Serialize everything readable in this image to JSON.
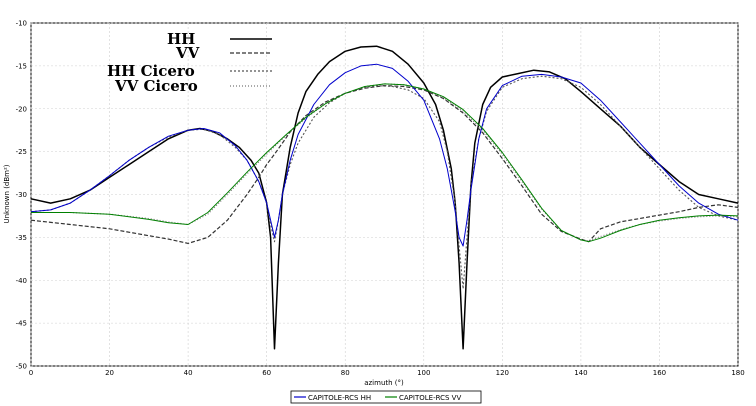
{
  "chart_data": {
    "type": "line",
    "xlabel": "azimuth (°)",
    "ylabel": "Unknown (dBm²)",
    "xlim": [
      0,
      180
    ],
    "ylim": [
      -50,
      -10
    ],
    "xticks": [
      0,
      20,
      40,
      60,
      80,
      100,
      120,
      140,
      160,
      180
    ],
    "yticks": [
      -10,
      -15,
      -20,
      -25,
      -30,
      -35,
      -40,
      -45,
      -50
    ],
    "grid": true,
    "legend_top": [
      "HH",
      "VV",
      "HH Cicero",
      "VV Cicero"
    ],
    "legend_bottom": [
      "CAPITOLE-RCS HH",
      "CAPITOLE-RCS VV"
    ],
    "series": [
      {
        "name": "HH",
        "color": "#000000",
        "x": [
          0,
          5,
          10,
          15,
          20,
          25,
          30,
          35,
          40,
          43,
          46,
          50,
          53,
          56,
          58,
          60,
          61,
          62,
          63,
          64,
          66,
          68,
          70,
          73,
          76,
          80,
          84,
          88,
          92,
          96,
          100,
          103,
          105,
          107,
          108,
          109,
          110,
          111,
          112,
          113,
          115,
          117,
          120,
          124,
          128,
          132,
          136,
          140,
          145,
          150,
          155,
          160,
          165,
          170,
          175,
          180
        ],
        "y": [
          -30.5,
          -31,
          -30.5,
          -29.5,
          -28,
          -26.5,
          -25,
          -23.5,
          -22.5,
          -22.3,
          -22.6,
          -23.5,
          -24.5,
          -26,
          -27.5,
          -31,
          -35,
          -48,
          -38,
          -30,
          -24.5,
          -20.5,
          -18,
          -16,
          -14.5,
          -13.3,
          -12.8,
          -12.7,
          -13.3,
          -14.8,
          -17,
          -19.5,
          -22.5,
          -27,
          -31,
          -38,
          -48,
          -38,
          -29,
          -24,
          -19.5,
          -17.5,
          -16.3,
          -15.9,
          -15.5,
          -15.7,
          -16.5,
          -18,
          -20,
          -22,
          -24.5,
          -26.5,
          -28.5,
          -30,
          -30.5,
          -31
        ]
      },
      {
        "name": "VV",
        "color": "#333333",
        "x": [
          0,
          10,
          20,
          30,
          35,
          40,
          45,
          50,
          55,
          58,
          60,
          62,
          64,
          66,
          70,
          75,
          80,
          85,
          90,
          95,
          100,
          105,
          110,
          115,
          120,
          125,
          130,
          135,
          140,
          142,
          145,
          150,
          155,
          160,
          165,
          170,
          175,
          180
        ],
        "y": [
          -33,
          -33.5,
          -34,
          -34.8,
          -35.2,
          -35.7,
          -35,
          -33,
          -30,
          -28,
          -26.5,
          -25.3,
          -24,
          -22.7,
          -20.8,
          -19.2,
          -18.2,
          -17.6,
          -17.3,
          -17.4,
          -17.8,
          -18.8,
          -20.5,
          -22.8,
          -25.8,
          -29,
          -32.3,
          -34.3,
          -35.2,
          -35.5,
          -34,
          -33.2,
          -32.8,
          -32.4,
          -32,
          -31.5,
          -31.2,
          -31.5
        ]
      },
      {
        "name": "HH Cicero",
        "color": "#555555",
        "x": [
          0,
          5,
          10,
          15,
          20,
          25,
          30,
          35,
          40,
          44,
          48,
          52,
          55,
          58,
          60,
          61,
          62,
          63,
          64,
          66,
          68,
          72,
          76,
          80,
          84,
          88,
          92,
          96,
          100,
          104,
          106,
          108,
          109,
          110,
          111,
          112,
          114,
          116,
          120,
          125,
          130,
          135,
          140,
          145,
          150,
          155,
          160,
          165,
          170,
          175,
          180
        ],
        "y": [
          -32,
          -31.8,
          -31,
          -29.5,
          -27.8,
          -26,
          -24.5,
          -23.3,
          -22.5,
          -22.4,
          -23,
          -24.5,
          -26,
          -28.5,
          -31,
          -33.5,
          -35.5,
          -33,
          -30,
          -26.5,
          -24,
          -21,
          -19.3,
          -18.2,
          -17.6,
          -17.3,
          -17.4,
          -17.8,
          -18.8,
          -21.5,
          -25,
          -31,
          -36,
          -41,
          -35,
          -29,
          -23.5,
          -20.3,
          -17.5,
          -16.5,
          -16.2,
          -16.5,
          -17.5,
          -19.5,
          -22,
          -24.5,
          -27,
          -29.5,
          -31.5,
          -32.5,
          -33
        ]
      },
      {
        "name": "VV Cicero",
        "color": "#777777",
        "x": [
          0,
          10,
          20,
          30,
          35,
          40,
          45,
          50,
          55,
          60,
          65,
          70,
          75,
          80,
          85,
          90,
          95,
          100,
          105,
          110,
          115,
          120,
          125,
          130,
          135,
          140,
          142,
          145,
          150,
          155,
          160,
          165,
          170,
          175,
          180
        ],
        "y": [
          -32.1,
          -32.1,
          -32.3,
          -32.8,
          -33.2,
          -33.5,
          -32.3,
          -30,
          -27.6,
          -25.3,
          -23.1,
          -21.1,
          -19.4,
          -18.2,
          -17.4,
          -17.1,
          -17.2,
          -17.7,
          -18.7,
          -20.3,
          -22.5,
          -25.3,
          -28.5,
          -31.7,
          -34.2,
          -35.3,
          -35.4,
          -34.9,
          -34.1,
          -33.5,
          -33.1,
          -32.8,
          -32.6,
          -32.5,
          -32.6
        ]
      },
      {
        "name": "CAPITOLE-RCS HH",
        "color": "#0000cc",
        "x": [
          0,
          5,
          10,
          15,
          20,
          25,
          30,
          35,
          40,
          44,
          48,
          52,
          55,
          58,
          60,
          61,
          62,
          63,
          64,
          66,
          68,
          72,
          76,
          80,
          84,
          88,
          92,
          96,
          100,
          104,
          106,
          107,
          108,
          109,
          110,
          111,
          112,
          114,
          116,
          120,
          125,
          130,
          135,
          140,
          145,
          150,
          155,
          160,
          165,
          170,
          175,
          180
        ],
        "y": [
          -32,
          -31.8,
          -31,
          -29.5,
          -27.8,
          -26,
          -24.5,
          -23.2,
          -22.5,
          -22.3,
          -22.8,
          -24.3,
          -26,
          -28.5,
          -31,
          -33,
          -35,
          -33,
          -30,
          -26,
          -23,
          -19.5,
          -17.2,
          -15.8,
          -15,
          -14.8,
          -15.3,
          -16.8,
          -19,
          -23.5,
          -27,
          -29.5,
          -32,
          -35,
          -36,
          -33,
          -29.5,
          -23.5,
          -20,
          -17.3,
          -16.2,
          -16,
          -16.3,
          -17,
          -19,
          -21.5,
          -24,
          -26.5,
          -29,
          -31,
          -32.3,
          -33
        ]
      },
      {
        "name": "CAPITOLE-RCS VV",
        "color": "#008000",
        "x": [
          0,
          10,
          20,
          30,
          35,
          40,
          45,
          50,
          55,
          60,
          65,
          70,
          75,
          80,
          85,
          90,
          95,
          100,
          105,
          110,
          115,
          120,
          125,
          130,
          135,
          140,
          142,
          145,
          150,
          155,
          160,
          165,
          170,
          175,
          180
        ],
        "y": [
          -32.1,
          -32.1,
          -32.3,
          -32.9,
          -33.3,
          -33.5,
          -32.1,
          -29.8,
          -27.4,
          -25.1,
          -23,
          -21,
          -19.4,
          -18.2,
          -17.4,
          -17.1,
          -17.2,
          -17.7,
          -18.6,
          -20.1,
          -22.3,
          -25.1,
          -28.3,
          -31.6,
          -34.2,
          -35.3,
          -35.5,
          -35.1,
          -34.2,
          -33.5,
          -33,
          -32.7,
          -32.5,
          -32.4,
          -32.5
        ]
      }
    ]
  }
}
